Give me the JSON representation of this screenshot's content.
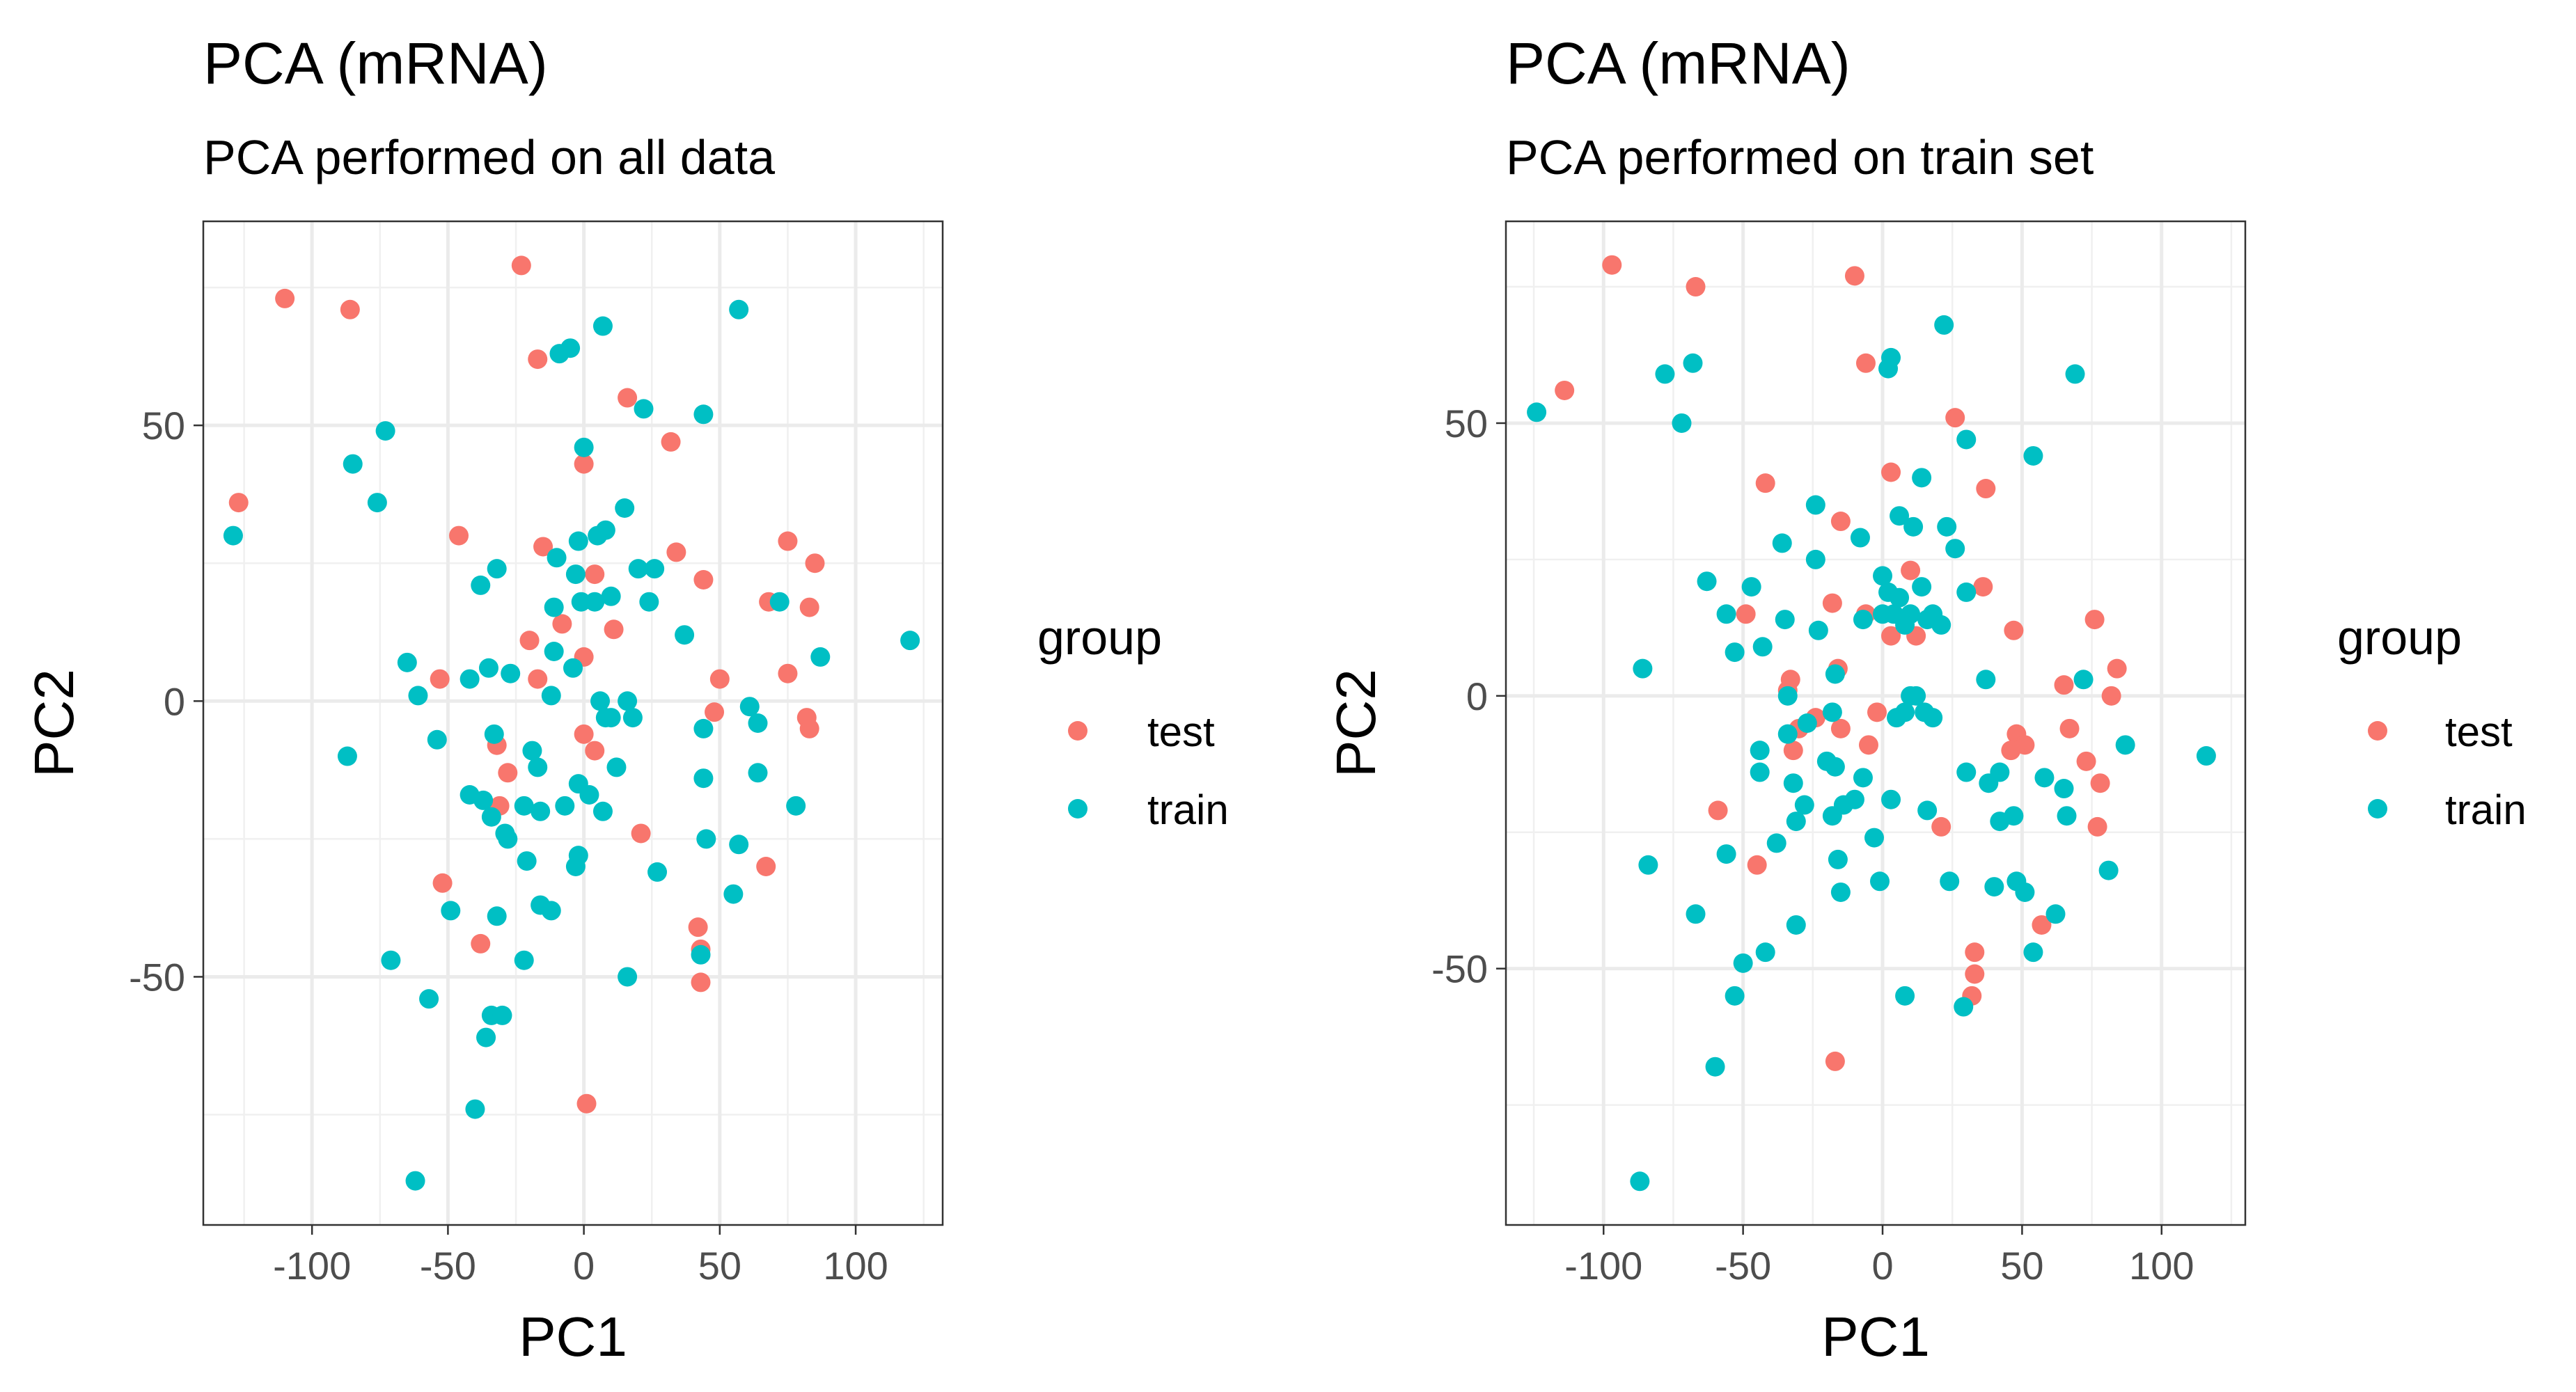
{
  "chart_data": [
    {
      "type": "scatter",
      "title": "PCA (mRNA)",
      "subtitle": "PCA performed on all data",
      "xlabel": "PC1",
      "ylabel": "PC2",
      "xlim": [
        -140,
        132
      ],
      "ylim": [
        -95,
        87
      ],
      "xticks": [
        -100,
        -50,
        0,
        50,
        100
      ],
      "xtick_labels": [
        "-100",
        "-50",
        "0",
        "50",
        "100"
      ],
      "yticks": [
        -50,
        0,
        50
      ],
      "ytick_labels": [
        "-50",
        "0",
        "50"
      ],
      "grid": true,
      "legend": {
        "title": "group",
        "position": "right"
      },
      "series": [
        {
          "name": "test",
          "color": "#f8766d",
          "points": [
            [
              -23,
              79
            ],
            [
              -110,
              73
            ],
            [
              -86,
              71
            ],
            [
              -17,
              62
            ],
            [
              16,
              55
            ],
            [
              32,
              47
            ],
            [
              0,
              43
            ],
            [
              -127,
              36
            ],
            [
              -46,
              30
            ],
            [
              -15,
              28
            ],
            [
              75,
              29
            ],
            [
              85,
              25
            ],
            [
              34,
              27
            ],
            [
              44,
              22
            ],
            [
              68,
              18
            ],
            [
              83,
              17
            ],
            [
              11,
              13
            ],
            [
              -20,
              11
            ],
            [
              0,
              8
            ],
            [
              -53,
              4
            ],
            [
              -17,
              4
            ],
            [
              50,
              4
            ],
            [
              75,
              5
            ],
            [
              -32,
              -8
            ],
            [
              0,
              -6
            ],
            [
              4,
              -9
            ],
            [
              -28,
              -13
            ],
            [
              -31,
              -19
            ],
            [
              21,
              -24
            ],
            [
              48,
              -2
            ],
            [
              82,
              -3
            ],
            [
              83,
              -5
            ],
            [
              67,
              -30
            ],
            [
              -52,
              -33
            ],
            [
              -38,
              -44
            ],
            [
              42,
              -41
            ],
            [
              43,
              -45
            ],
            [
              43,
              -51
            ],
            [
              1,
              -73
            ],
            [
              4,
              23
            ],
            [
              -8,
              14
            ]
          ]
        },
        {
          "name": "train",
          "color": "#00bfc4",
          "points": [
            [
              -129,
              30
            ],
            [
              -85,
              43
            ],
            [
              -73,
              49
            ],
            [
              -76,
              36
            ],
            [
              -9,
              63
            ],
            [
              -5,
              64
            ],
            [
              7,
              68
            ],
            [
              57,
              71
            ],
            [
              0,
              46
            ],
            [
              22,
              53
            ],
            [
              44,
              52
            ],
            [
              15,
              35
            ],
            [
              8,
              31
            ],
            [
              -2,
              29
            ],
            [
              5,
              30
            ],
            [
              -10,
              26
            ],
            [
              -32,
              24
            ],
            [
              -38,
              21
            ],
            [
              -3,
              23
            ],
            [
              -1,
              18
            ],
            [
              10,
              19
            ],
            [
              4,
              18
            ],
            [
              20,
              24
            ],
            [
              26,
              24
            ],
            [
              24,
              18
            ],
            [
              -11,
              17
            ],
            [
              37,
              12
            ],
            [
              72,
              18
            ],
            [
              120,
              11
            ],
            [
              87,
              8
            ],
            [
              -11,
              9
            ],
            [
              -4,
              6
            ],
            [
              -65,
              7
            ],
            [
              -35,
              6
            ],
            [
              -27,
              5
            ],
            [
              -42,
              4
            ],
            [
              -61,
              1
            ],
            [
              -12,
              1
            ],
            [
              6,
              0
            ],
            [
              10,
              -3
            ],
            [
              16,
              0
            ],
            [
              18,
              -3
            ],
            [
              8,
              -3
            ],
            [
              44,
              -5
            ],
            [
              61,
              -1
            ],
            [
              64,
              -4
            ],
            [
              -54,
              -7
            ],
            [
              -33,
              -6
            ],
            [
              -19,
              -9
            ],
            [
              -17,
              -12
            ],
            [
              -2,
              -15
            ],
            [
              -87,
              -10
            ],
            [
              -42,
              -17
            ],
            [
              -37,
              -18
            ],
            [
              -34,
              -21
            ],
            [
              -22,
              -19
            ],
            [
              -16,
              -20
            ],
            [
              -7,
              -19
            ],
            [
              2,
              -17
            ],
            [
              12,
              -12
            ],
            [
              7,
              -20
            ],
            [
              44,
              -14
            ],
            [
              64,
              -13
            ],
            [
              78,
              -19
            ],
            [
              45,
              -25
            ],
            [
              57,
              -26
            ],
            [
              -29,
              -24
            ],
            [
              -28,
              -25
            ],
            [
              -21,
              -29
            ],
            [
              -2,
              -28
            ],
            [
              -3,
              -30
            ],
            [
              27,
              -31
            ],
            [
              55,
              -35
            ],
            [
              -49,
              -38
            ],
            [
              -32,
              -39
            ],
            [
              -16,
              -37
            ],
            [
              -12,
              -38
            ],
            [
              -71,
              -47
            ],
            [
              -22,
              -47
            ],
            [
              -57,
              -54
            ],
            [
              -34,
              -57
            ],
            [
              -30,
              -57
            ],
            [
              16,
              -50
            ],
            [
              -36,
              -61
            ],
            [
              -40,
              -74
            ],
            [
              -62,
              -87
            ],
            [
              43,
              -46
            ]
          ]
        }
      ]
    },
    {
      "type": "scatter",
      "title": "PCA (mRNA)",
      "subtitle": "PCA performed on train set",
      "xlabel": "PC1",
      "ylabel": "PC2",
      "xlim": [
        -135,
        130
      ],
      "ylim": [
        -97,
        87
      ],
      "xticks": [
        -100,
        -50,
        0,
        50,
        100
      ],
      "xtick_labels": [
        "-100",
        "-50",
        "0",
        "50",
        "100"
      ],
      "yticks": [
        -50,
        0,
        50
      ],
      "ytick_labels": [
        "-50",
        "0",
        "50"
      ],
      "grid": true,
      "legend": {
        "title": "group",
        "position": "right"
      },
      "series": [
        {
          "name": "test",
          "color": "#f8766d",
          "points": [
            [
              -97,
              79
            ],
            [
              -67,
              75
            ],
            [
              -10,
              77
            ],
            [
              -114,
              56
            ],
            [
              -6,
              61
            ],
            [
              26,
              51
            ],
            [
              -42,
              39
            ],
            [
              37,
              38
            ],
            [
              -15,
              32
            ],
            [
              3,
              41
            ],
            [
              10,
              23
            ],
            [
              36,
              20
            ],
            [
              -18,
              17
            ],
            [
              -6,
              15
            ],
            [
              12,
              11
            ],
            [
              -49,
              15
            ],
            [
              47,
              12
            ],
            [
              76,
              14
            ],
            [
              -33,
              3
            ],
            [
              -16,
              5
            ],
            [
              -34,
              1
            ],
            [
              65,
              2
            ],
            [
              84,
              5
            ],
            [
              -2,
              -3
            ],
            [
              -24,
              -4
            ],
            [
              -30,
              -6
            ],
            [
              -15,
              -6
            ],
            [
              -32,
              -10
            ],
            [
              -5,
              -9
            ],
            [
              48,
              -7
            ],
            [
              67,
              -6
            ],
            [
              82,
              0
            ],
            [
              46,
              -10
            ],
            [
              51,
              -9
            ],
            [
              73,
              -12
            ],
            [
              78,
              -16
            ],
            [
              -59,
              -21
            ],
            [
              21,
              -24
            ],
            [
              77,
              -24
            ],
            [
              -45,
              -31
            ],
            [
              57,
              -42
            ],
            [
              33,
              -47
            ],
            [
              33,
              -51
            ],
            [
              32,
              -55
            ],
            [
              -17,
              -67
            ],
            [
              3,
              11
            ]
          ]
        },
        {
          "name": "train",
          "color": "#00bfc4",
          "points": [
            [
              -124,
              52
            ],
            [
              -78,
              59
            ],
            [
              -68,
              61
            ],
            [
              -72,
              50
            ],
            [
              2,
              60
            ],
            [
              3,
              62
            ],
            [
              22,
              68
            ],
            [
              69,
              59
            ],
            [
              30,
              47
            ],
            [
              54,
              44
            ],
            [
              14,
              40
            ],
            [
              -24,
              35
            ],
            [
              -8,
              29
            ],
            [
              6,
              33
            ],
            [
              11,
              31
            ],
            [
              23,
              31
            ],
            [
              -36,
              28
            ],
            [
              -24,
              25
            ],
            [
              -47,
              20
            ],
            [
              -63,
              21
            ],
            [
              0,
              22
            ],
            [
              2,
              19
            ],
            [
              6,
              18
            ],
            [
              14,
              20
            ],
            [
              26,
              27
            ],
            [
              4,
              15
            ],
            [
              10,
              15
            ],
            [
              18,
              15
            ],
            [
              16,
              14
            ],
            [
              21,
              13
            ],
            [
              -56,
              15
            ],
            [
              -43,
              9
            ],
            [
              -35,
              14
            ],
            [
              -23,
              12
            ],
            [
              0,
              15
            ],
            [
              30,
              19
            ],
            [
              8,
              13
            ],
            [
              -7,
              14
            ],
            [
              -86,
              5
            ],
            [
              -53,
              8
            ],
            [
              -17,
              4
            ],
            [
              -34,
              0
            ],
            [
              37,
              3
            ],
            [
              72,
              3
            ],
            [
              10,
              0
            ],
            [
              12,
              0
            ],
            [
              8,
              -3
            ],
            [
              5,
              -4
            ],
            [
              15,
              -3
            ],
            [
              18,
              -4
            ],
            [
              -18,
              -3
            ],
            [
              -27,
              -5
            ],
            [
              -34,
              -7
            ],
            [
              -44,
              -10
            ],
            [
              -17,
              -13
            ],
            [
              -7,
              -15
            ],
            [
              -44,
              -14
            ],
            [
              -20,
              -12
            ],
            [
              -32,
              -16
            ],
            [
              -10,
              -19
            ],
            [
              3,
              -19
            ],
            [
              16,
              -21
            ],
            [
              30,
              -14
            ],
            [
              38,
              -16
            ],
            [
              42,
              -14
            ],
            [
              58,
              -15
            ],
            [
              65,
              -17
            ],
            [
              -14,
              -20
            ],
            [
              -18,
              -22
            ],
            [
              -28,
              -20
            ],
            [
              -31,
              -23
            ],
            [
              -3,
              -26
            ],
            [
              -56,
              -29
            ],
            [
              -38,
              -27
            ],
            [
              -16,
              -30
            ],
            [
              42,
              -23
            ],
            [
              47,
              -22
            ],
            [
              66,
              -22
            ],
            [
              87,
              -9
            ],
            [
              116,
              -11
            ],
            [
              -84,
              -31
            ],
            [
              -15,
              -36
            ],
            [
              -1,
              -34
            ],
            [
              24,
              -34
            ],
            [
              40,
              -35
            ],
            [
              48,
              -34
            ],
            [
              51,
              -36
            ],
            [
              81,
              -32
            ],
            [
              -67,
              -40
            ],
            [
              -31,
              -42
            ],
            [
              62,
              -40
            ],
            [
              -50,
              -49
            ],
            [
              -42,
              -47
            ],
            [
              54,
              -47
            ],
            [
              -53,
              -55
            ],
            [
              8,
              -55
            ],
            [
              29,
              -57
            ],
            [
              -60,
              -68
            ],
            [
              -87,
              -89
            ]
          ]
        }
      ]
    }
  ]
}
